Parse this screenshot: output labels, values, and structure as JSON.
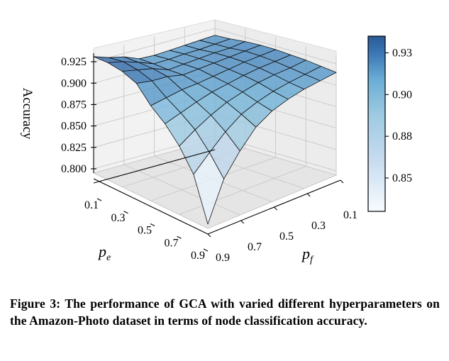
{
  "chart_data": {
    "type": "surface3d",
    "zlabel": "Accuracy",
    "xlabel": "p_e",
    "ylabel": "p_f",
    "x_ticks": [
      "0.1",
      "0.3",
      "0.5",
      "0.7",
      "0.9"
    ],
    "y_ticks": [
      "0.9",
      "0.7",
      "0.5",
      "0.3",
      "0.1"
    ],
    "z_ticks": [
      "0.800",
      "0.825",
      "0.850",
      "0.875",
      "0.900",
      "0.925"
    ],
    "zlim": [
      0.795,
      0.935
    ],
    "colorbar": {
      "ticks": [
        "0.85",
        "0.88",
        "0.90",
        "0.93"
      ],
      "tick_values": [
        0.85,
        0.875,
        0.9,
        0.925
      ],
      "range": [
        0.83,
        0.935
      ],
      "low_color": "#f7fbff",
      "high_color": "#08306b"
    },
    "pe_grid": [
      0.1,
      0.2,
      0.3,
      0.4,
      0.5,
      0.6,
      0.7,
      0.8,
      0.9
    ],
    "pf_grid": [
      0.1,
      0.2,
      0.3,
      0.4,
      0.5,
      0.6,
      0.7,
      0.8,
      0.9
    ],
    "z": [
      [
        0.917,
        0.918,
        0.92,
        0.921,
        0.921,
        0.92,
        0.919,
        0.917,
        0.915
      ],
      [
        0.916,
        0.917,
        0.918,
        0.92,
        0.92,
        0.919,
        0.917,
        0.915,
        0.913
      ],
      [
        0.915,
        0.916,
        0.918,
        0.919,
        0.919,
        0.918,
        0.916,
        0.913,
        0.911
      ],
      [
        0.914,
        0.916,
        0.917,
        0.918,
        0.917,
        0.916,
        0.914,
        0.91,
        0.907
      ],
      [
        0.913,
        0.915,
        0.916,
        0.917,
        0.915,
        0.913,
        0.91,
        0.905,
        0.901
      ],
      [
        0.914,
        0.915,
        0.915,
        0.916,
        0.913,
        0.91,
        0.905,
        0.898,
        0.89
      ],
      [
        0.921,
        0.922,
        0.922,
        0.92,
        0.912,
        0.905,
        0.897,
        0.885,
        0.87
      ],
      [
        0.925,
        0.928,
        0.926,
        0.921,
        0.909,
        0.899,
        0.887,
        0.868,
        0.845
      ],
      [
        0.931,
        0.932,
        0.93,
        0.924,
        0.906,
        0.893,
        0.875,
        0.85,
        0.8
      ]
    ]
  },
  "caption": "Figure 3: The performance of GCA with varied different hyperparameters on the Amazon-Photo dataset in terms of node classification accuracy."
}
